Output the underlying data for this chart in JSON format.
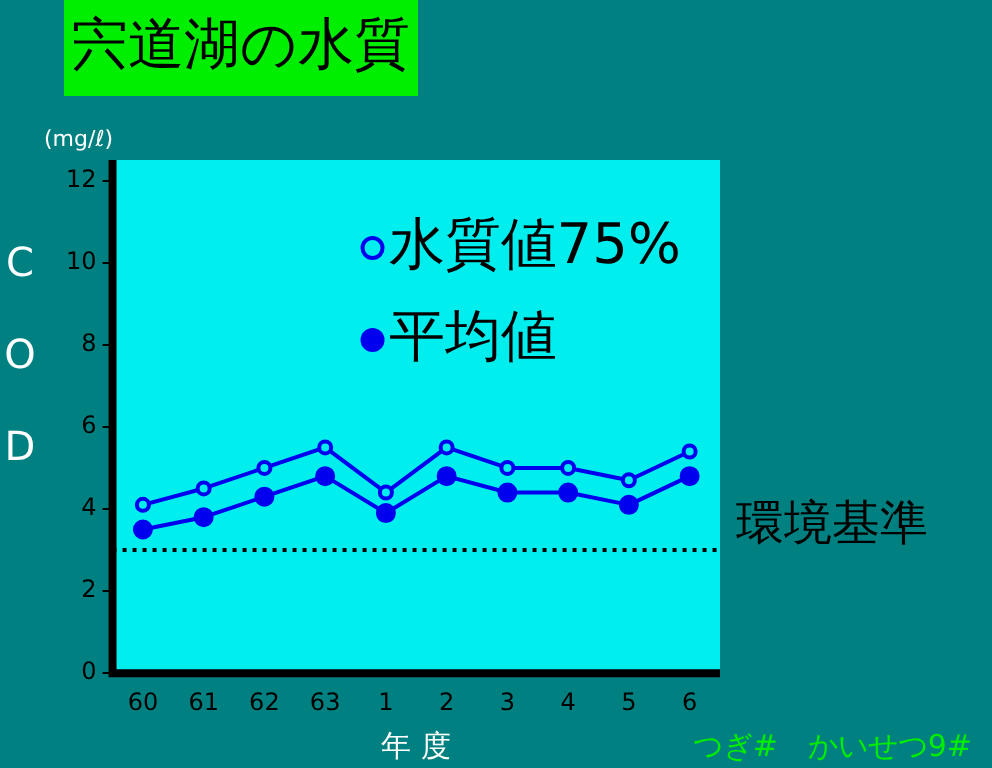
{
  "chart_data": {
    "type": "line",
    "title": "宍道湖の水質",
    "ylabel": "COD",
    "xlabel": "年 度",
    "annotations": [
      "(mg/ℓ)",
      "つぎ#　かいせつ9#"
    ],
    "categories": [
      "60",
      "61",
      "62",
      "63",
      "1",
      "2",
      "3",
      "4",
      "5",
      "6"
    ],
    "series": [
      {
        "name": "水質値75%",
        "color": "#0000ee",
        "values": [
          4.1,
          4.5,
          5.0,
          5.5,
          4.4,
          5.5,
          5.0,
          5.0,
          4.7,
          5.4
        ]
      },
      {
        "name": "平均値",
        "color": "#0000ee",
        "values": [
          3.5,
          3.8,
          4.3,
          4.8,
          3.9,
          4.8,
          4.4,
          4.4,
          4.1,
          4.8
        ]
      }
    ],
    "ylim": [
      0,
      12.5
    ],
    "yticks": [
      0,
      2,
      4,
      6,
      8,
      10,
      12
    ],
    "ref_lines": [
      {
        "axis": "y",
        "value": 3,
        "label": "環境基準",
        "color": "#000000",
        "line_style": "dotted"
      }
    ],
    "marker": "circle",
    "legend": "top right",
    "grid": false
  }
}
